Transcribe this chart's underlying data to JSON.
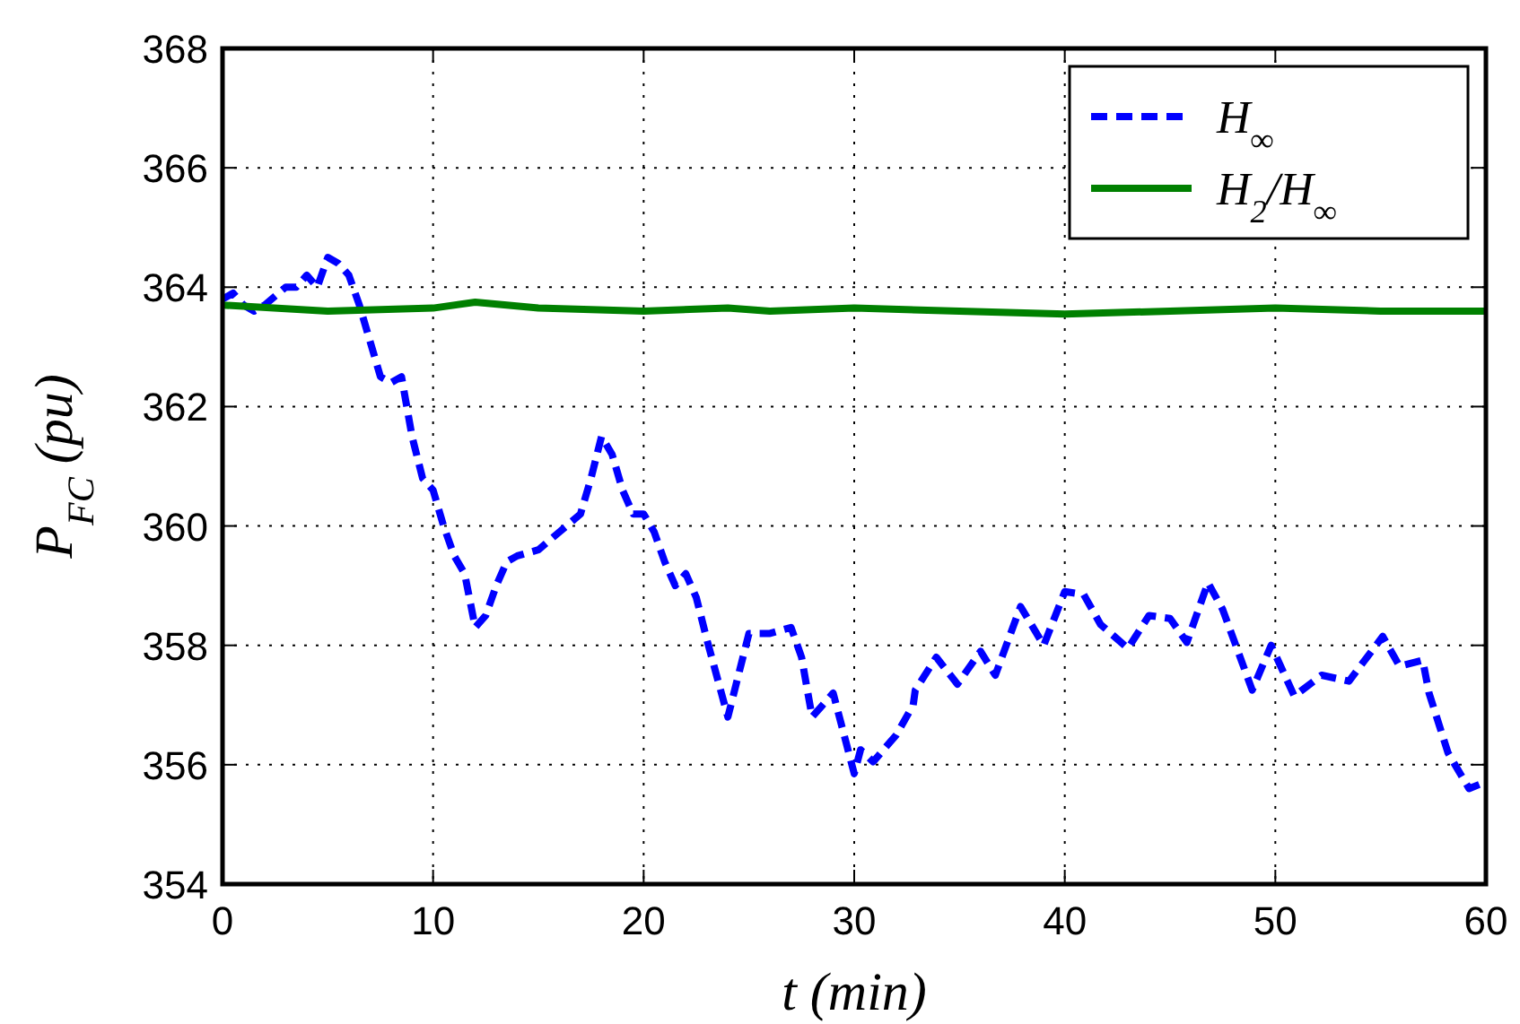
{
  "chart_data": {
    "type": "line",
    "xlabel": "t (min)",
    "ylabel": "P$_{FC}$ (pu)",
    "xlim": [
      0,
      60
    ],
    "ylim": [
      354,
      368
    ],
    "xticks": [
      0,
      10,
      20,
      30,
      40,
      50,
      60
    ],
    "yticks": [
      354,
      356,
      358,
      360,
      362,
      364,
      366,
      368
    ],
    "grid": true,
    "legend": "top right",
    "series": [
      {
        "name": "H$_{∞}$",
        "color": "#0000ff",
        "line_style": "dashed",
        "x": [
          0,
          0.5,
          1,
          1.5,
          2,
          3,
          3.5,
          4,
          4.5,
          5,
          5.5,
          6,
          6.5,
          7,
          7.5,
          8,
          8.5,
          9,
          9.5,
          10,
          10.5,
          11,
          11.5,
          12,
          12.5,
          13,
          13.5,
          14,
          15,
          16,
          17,
          17.5,
          18,
          18.5,
          19,
          19.5,
          20,
          20.5,
          21,
          21.5,
          22,
          22.5,
          23,
          24,
          25,
          26,
          27,
          27.5,
          28,
          28.5,
          29,
          30,
          30.3,
          30.9,
          32,
          32.8,
          32.9,
          33.9,
          34.9,
          36,
          36.7,
          37.9,
          39,
          40,
          40.9,
          41.7,
          43,
          44,
          45,
          45.8,
          46.8,
          47.5,
          48.9,
          49.8,
          50.9,
          52.2,
          53.5,
          55.1,
          55.9,
          57,
          57.3,
          58.2,
          59.2,
          59.9
        ],
        "values": [
          363.8,
          363.9,
          363.7,
          363.6,
          363.7,
          364,
          364,
          364.2,
          364,
          364.5,
          364.4,
          364.2,
          363.7,
          363.1,
          362.5,
          362.4,
          362.5,
          361.5,
          360.8,
          360.6,
          360,
          359.5,
          359.2,
          358.3,
          358.5,
          359,
          359.4,
          359.5,
          359.6,
          359.9,
          360.2,
          360.8,
          361.5,
          361.2,
          360.6,
          360.2,
          360.2,
          359.9,
          359.4,
          359,
          359.2,
          358.8,
          358.1,
          356.8,
          358.2,
          358.2,
          358.3,
          357.8,
          356.8,
          357,
          357.2,
          355.85,
          356.25,
          356.05,
          356.5,
          357,
          357.25,
          357.8,
          357.35,
          357.9,
          357.5,
          358.65,
          358,
          358.9,
          358.85,
          358.35,
          357.95,
          358.5,
          358.45,
          358.05,
          359.05,
          358.6,
          357.25,
          358,
          357.15,
          357.5,
          357.4,
          358.15,
          357.65,
          357.75,
          357.2,
          356.2,
          355.6,
          355.7
        ]
      },
      {
        "name": "H$_{2}$/H$_{∞}$",
        "color": "#008000",
        "line_style": "solid",
        "x": [
          0,
          5,
          10,
          12,
          15,
          20,
          24,
          26,
          30,
          35,
          40,
          45,
          50,
          55,
          60
        ],
        "values": [
          363.7,
          363.6,
          363.65,
          363.75,
          363.65,
          363.6,
          363.65,
          363.6,
          363.65,
          363.6,
          363.55,
          363.6,
          363.65,
          363.6,
          363.6
        ]
      }
    ]
  }
}
